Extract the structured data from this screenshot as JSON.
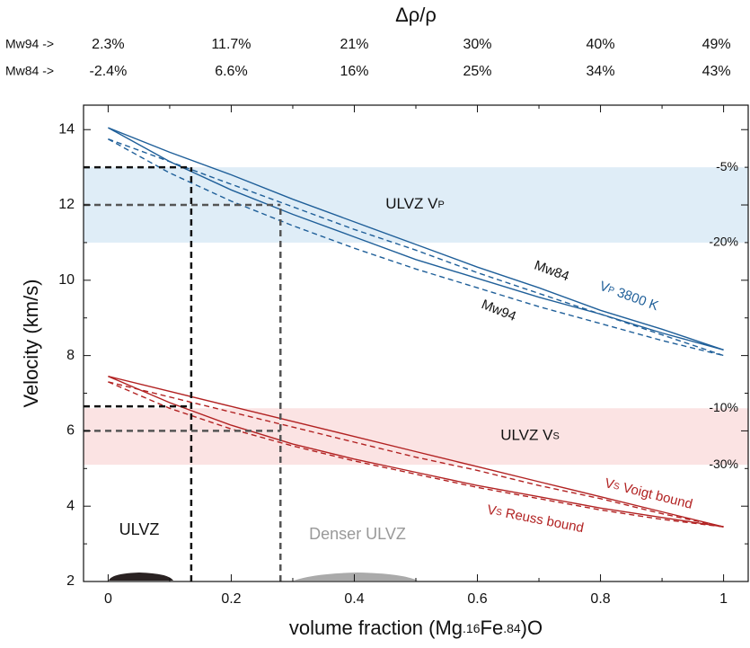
{
  "chart_data": {
    "type": "line",
    "title": "Δρ/ρ",
    "top_rows": [
      {
        "name": "Mw94 ->",
        "labels": [
          "2.3%",
          "11.7%",
          "21%",
          "30%",
          "40%",
          "49%"
        ]
      },
      {
        "name": "Mw84 ->",
        "labels": [
          "-2.4%",
          "6.6%",
          "16%",
          "25%",
          "34%",
          "43%"
        ]
      }
    ],
    "ylabel": "Velocity (km/s)",
    "xlabel": [
      "volume fraction (Mg",
      ".16",
      "Fe",
      ".84",
      ")O"
    ],
    "xlim": [
      -0.04,
      1.04
    ],
    "ylim": [
      2,
      14.65
    ],
    "xticks": [
      0,
      0.2,
      0.4,
      0.6,
      0.8,
      1
    ],
    "xminor": [
      0.1,
      0.3,
      0.5,
      0.7,
      0.9
    ],
    "yticks": [
      2,
      4,
      6,
      8,
      10,
      12,
      14
    ],
    "yminor": [
      3,
      5,
      7,
      9,
      11,
      13
    ],
    "x": [
      0,
      0.1,
      0.2,
      0.3,
      0.4,
      0.5,
      0.6,
      0.7,
      0.8,
      0.9,
      1
    ],
    "series": [
      {
        "color": "#1f5f99",
        "style": "solid",
        "values": [
          14.05,
          13.4,
          12.8,
          12.15,
          11.55,
          10.95,
          10.35,
          9.8,
          9.2,
          8.7,
          8.15
        ]
      },
      {
        "color": "#1f5f99",
        "style": "solid",
        "values": [
          14.05,
          13.15,
          12.4,
          11.75,
          11.15,
          10.55,
          10.05,
          9.55,
          9.1,
          8.6,
          8.15
        ]
      },
      {
        "color": "#1f5f99",
        "style": "dashed",
        "values": [
          13.75,
          13.15,
          12.55,
          11.95,
          11.35,
          10.8,
          10.2,
          9.65,
          9.1,
          8.55,
          8.0
        ]
      },
      {
        "color": "#1f5f99",
        "style": "dashed",
        "values": [
          13.75,
          12.85,
          12.1,
          11.45,
          10.85,
          10.3,
          9.8,
          9.3,
          8.85,
          8.4,
          8.0
        ]
      },
      {
        "color": "#b22222",
        "style": "solid",
        "values": [
          7.45,
          7.05,
          6.65,
          6.25,
          5.85,
          5.45,
          5.05,
          4.65,
          4.25,
          3.85,
          3.45
        ]
      },
      {
        "color": "#b22222",
        "style": "solid",
        "values": [
          7.45,
          6.75,
          6.15,
          5.65,
          5.25,
          4.9,
          4.55,
          4.25,
          3.95,
          3.7,
          3.45
        ]
      },
      {
        "color": "#b22222",
        "style": "dashed",
        "values": [
          7.3,
          6.9,
          6.5,
          6.1,
          5.7,
          5.3,
          4.95,
          4.55,
          4.2,
          3.8,
          3.45
        ]
      },
      {
        "color": "#b22222",
        "style": "dashed",
        "values": [
          7.3,
          6.6,
          6.05,
          5.6,
          5.2,
          4.85,
          4.5,
          4.2,
          3.9,
          3.65,
          3.45
        ]
      }
    ],
    "bands": [
      {
        "edges": [
          13,
          11
        ],
        "edge_labels": [
          "-5%",
          "-20%"
        ],
        "color": "#dfedf7",
        "label": [
          "ULVZ V",
          "P"
        ]
      },
      {
        "edges": [
          6.6,
          5.1
        ],
        "edge_labels": [
          "-10%",
          "-30%"
        ],
        "color": "#fbe3e3",
        "label": [
          "ULVZ V",
          "S"
        ]
      }
    ],
    "markers": [
      {
        "x": 0.135,
        "y": [
          13,
          6.65
        ],
        "color": "#111111"
      },
      {
        "x": 0.28,
        "y": [
          12,
          6
        ],
        "color": "#555555"
      }
    ],
    "annotations": [
      {
        "parts": [
          "Mw84"
        ],
        "color": "#111111"
      },
      {
        "parts": [
          "Mw94"
        ],
        "color": "#111111"
      },
      {
        "parts": [
          "V",
          "P",
          "  3800 K"
        ],
        "color": "#1f5f99"
      },
      {
        "parts": [
          "V",
          "S",
          "  Voigt bound"
        ],
        "color": "#b22222"
      },
      {
        "parts": [
          "V",
          "S",
          "  Reuss bound"
        ],
        "color": "#b22222"
      },
      {
        "parts": [
          "ULVZ"
        ],
        "color": "#111111"
      },
      {
        "parts": [
          "Denser ULVZ"
        ],
        "color": "#999999"
      }
    ]
  }
}
